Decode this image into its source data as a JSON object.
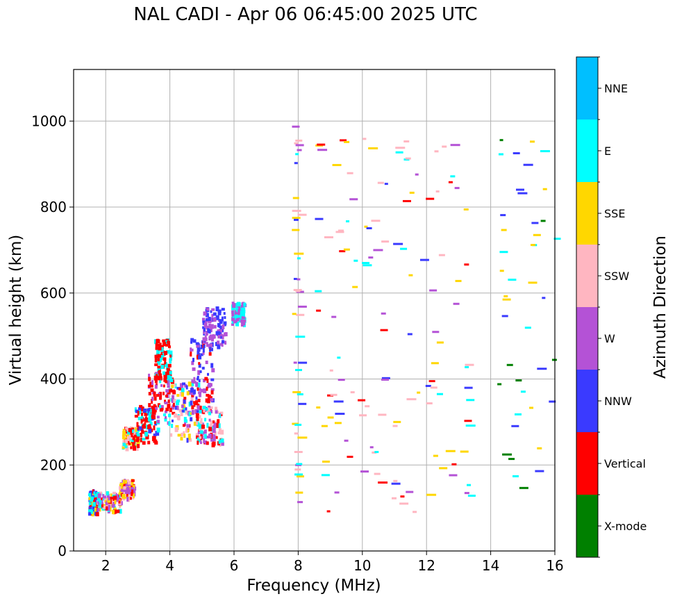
{
  "chart_data": {
    "type": "scatter",
    "title": "NAL CADI - Apr 06 06:45:00 2025 UTC",
    "xlabel": "Frequency (MHz)",
    "ylabel": "Virtual height (km)",
    "xlim": [
      1,
      16
    ],
    "ylim": [
      0,
      1120
    ],
    "xticks": [
      "2",
      "4",
      "6",
      "8",
      "10",
      "12",
      "14",
      "16"
    ],
    "yticks": [
      "0",
      "200",
      "400",
      "600",
      "800",
      "1000"
    ],
    "grid": true,
    "colorbar": {
      "label": "Azimuth Direction",
      "categories": [
        {
          "name": "X-mode",
          "color": "#008000"
        },
        {
          "name": "Vertical",
          "color": "#ff0000"
        },
        {
          "name": "NNW",
          "color": "#3a3aff"
        },
        {
          "name": "W",
          "color": "#b452d6"
        },
        {
          "name": "SSW",
          "color": "#ffb6c1"
        },
        {
          "name": "SSE",
          "color": "#ffd700"
        },
        {
          "name": "E",
          "color": "#00ffff"
        },
        {
          "name": "NNE",
          "color": "#00bfff"
        }
      ]
    },
    "clusters": [
      {
        "fmin": 1.45,
        "fmax": 1.7,
        "hmin": 90,
        "hmax": 145,
        "mix": [
          "E",
          "Vertical",
          "NNW",
          "SSE"
        ]
      },
      {
        "fmin": 1.7,
        "fmax": 2.45,
        "hmin": 95,
        "hmax": 140,
        "mix": [
          "Vertical",
          "SSW",
          "E",
          "W",
          "SSE"
        ]
      },
      {
        "fmin": 2.4,
        "fmax": 2.85,
        "hmin": 125,
        "hmax": 168,
        "mix": [
          "SSW",
          "W",
          "SSE",
          "Vertical"
        ]
      },
      {
        "fmin": 2.5,
        "fmax": 3.0,
        "hmin": 242,
        "hmax": 290,
        "mix": [
          "SSE",
          "E",
          "Vertical",
          "SSW"
        ]
      },
      {
        "fmin": 2.9,
        "fmax": 3.6,
        "hmin": 255,
        "hmax": 340,
        "mix": [
          "Vertical",
          "E",
          "Vertical",
          "NNW"
        ]
      },
      {
        "fmin": 3.3,
        "fmax": 4.1,
        "hmin": 300,
        "hmax": 420,
        "mix": [
          "Vertical",
          "Vertical",
          "E",
          "W"
        ]
      },
      {
        "fmin": 3.5,
        "fmax": 4.0,
        "hmin": 400,
        "hmax": 495,
        "mix": [
          "Vertical",
          "Vertical",
          "E"
        ]
      },
      {
        "fmin": 4.0,
        "fmax": 4.9,
        "hmin": 260,
        "hmax": 400,
        "mix": [
          "W",
          "NNW",
          "Vertical",
          "E",
          "SSE",
          "SSW"
        ]
      },
      {
        "fmin": 4.6,
        "fmax": 5.3,
        "hmin": 320,
        "hmax": 500,
        "mix": [
          "W",
          "NNW",
          "Vertical"
        ]
      },
      {
        "fmin": 4.8,
        "fmax": 5.6,
        "hmin": 250,
        "hmax": 340,
        "mix": [
          "SSW",
          "E",
          "W",
          "Vertical"
        ]
      },
      {
        "fmin": 5.0,
        "fmax": 5.7,
        "hmin": 480,
        "hmax": 570,
        "mix": [
          "W",
          "NNW"
        ]
      },
      {
        "fmin": 5.9,
        "fmax": 6.3,
        "hmin": 530,
        "hmax": 580,
        "mix": [
          "W",
          "E"
        ]
      },
      {
        "fmin": 7.8,
        "fmax": 8.0,
        "hmin": 90,
        "hmax": 990,
        "mix": [
          "NNW",
          "W",
          "SSE",
          "E",
          "SSW"
        ]
      },
      {
        "fmin": 8.5,
        "fmax": 10.0,
        "hmin": 90,
        "hmax": 960,
        "mix": [
          "SSE",
          "E",
          "NNW",
          "W",
          "SSW",
          "Vertical"
        ]
      },
      {
        "fmin": 10.0,
        "fmax": 11.5,
        "hmin": 90,
        "hmax": 1010,
        "mix": [
          "SSE",
          "W",
          "Vertical",
          "SSW",
          "NNW",
          "E"
        ]
      },
      {
        "fmin": 11.5,
        "fmax": 13.3,
        "hmin": 90,
        "hmax": 960,
        "mix": [
          "SSE",
          "NNW",
          "W",
          "SSW",
          "E",
          "Vertical"
        ]
      },
      {
        "fmin": 14.2,
        "fmax": 16.0,
        "hmin": 135,
        "hmax": 960,
        "mix": [
          "SSE",
          "NNW",
          "E",
          "X-mode"
        ]
      }
    ]
  }
}
